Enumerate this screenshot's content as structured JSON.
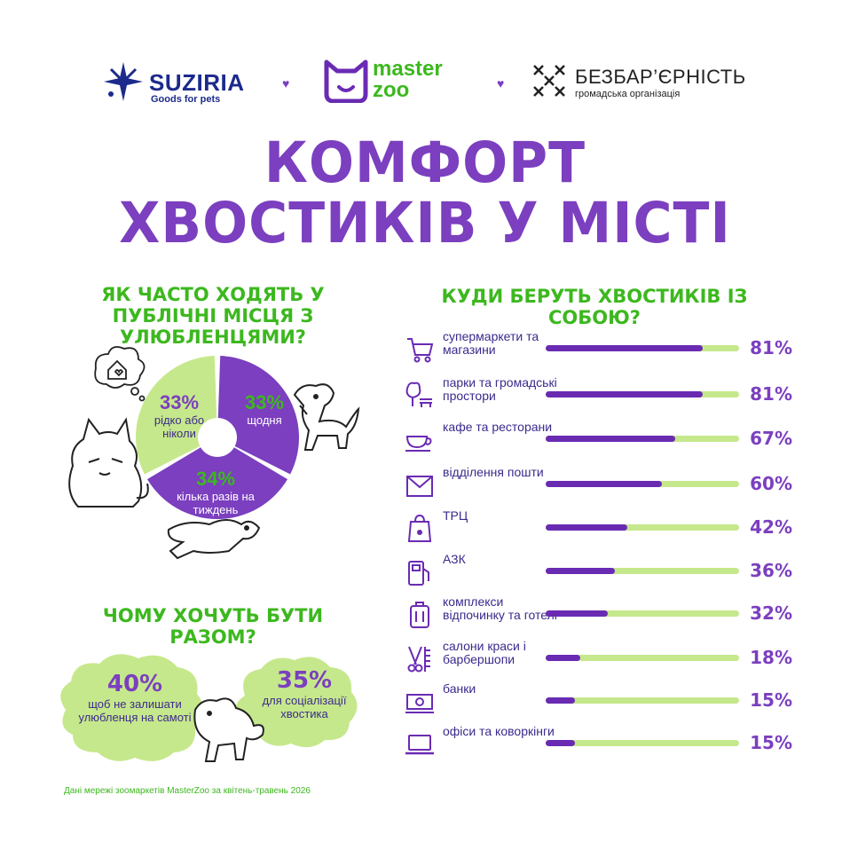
{
  "header": {
    "suziria": {
      "name": "SUZIRIA",
      "tagline": "Goods for pets"
    },
    "masterzoo": {
      "line1": "master",
      "line2": "zoo"
    },
    "bezbar": {
      "name": "БЕЗБАР’ЄРНІСТЬ",
      "tagline": "громадська організація"
    },
    "separator_icon": "heart-icon"
  },
  "title": {
    "line1": "КОМФОРТ",
    "line2": "ХВОСТИКІВ У МІСТІ"
  },
  "colors": {
    "purple": "#7b3fbf",
    "dark_purple": "#6a2bb3",
    "green": "#3cb81e",
    "light_green": "#c6e88c",
    "text": "#3b2a8c"
  },
  "chart_data": [
    {
      "type": "pie",
      "title": "ЯК ЧАСТО ХОДЯТЬ У ПУБЛІЧНІ МІСЦЯ З УЛЮБЛЕНЦЯМИ?",
      "slices": [
        {
          "label": "щодня",
          "value": 33,
          "value_label": "33%",
          "color": "#7b3fbf"
        },
        {
          "label": "кілька разів на тиждень",
          "value": 34,
          "value_label": "34%",
          "color": "#7b3fbf"
        },
        {
          "label": "рідко або ніколи",
          "value": 33,
          "value_label": "33%",
          "color": "#c6e88c"
        }
      ]
    },
    {
      "type": "bar",
      "orientation": "horizontal",
      "title": "КУДИ БЕРУТЬ ХВОСТИКІВ ІЗ СОБОЮ?",
      "xlim": [
        0,
        100
      ],
      "categories": [
        {
          "label": "супермаркети та магазини",
          "value": 81,
          "value_label": "81%",
          "icon": "shopping-cart-icon"
        },
        {
          "label": "парки та громадські простори",
          "value": 81,
          "value_label": "81%",
          "icon": "park-icon"
        },
        {
          "label": "кафе та ресторани",
          "value": 67,
          "value_label": "67%",
          "icon": "coffee-cup-icon"
        },
        {
          "label": "відділення пошти",
          "value": 60,
          "value_label": "60%",
          "icon": "mail-icon"
        },
        {
          "label": "ТРЦ",
          "value": 42,
          "value_label": "42%",
          "icon": "shopping-bag-icon"
        },
        {
          "label": "АЗК",
          "value": 36,
          "value_label": "36%",
          "icon": "fuel-pump-icon"
        },
        {
          "label": "комплекси відпочинку та готелі",
          "value": 32,
          "value_label": "32%",
          "icon": "suitcase-icon"
        },
        {
          "label": "салони краси і барбершопи",
          "value": 18,
          "value_label": "18%",
          "icon": "scissors-icon"
        },
        {
          "label": "банки",
          "value": 15,
          "value_label": "15%",
          "icon": "cash-icon"
        },
        {
          "label": "офіси та коворкінги",
          "value": 15,
          "value_label": "15%",
          "icon": "laptop-icon"
        }
      ]
    },
    {
      "type": "table",
      "title": "ЧОМУ ХОЧУТЬ БУТИ РАЗОМ?",
      "items": [
        {
          "value": 40,
          "value_label": "40%",
          "label": "щоб не залишати улюбленця на самоті"
        },
        {
          "value": 35,
          "value_label": "35%",
          "label": "для соціалізації хвостика"
        }
      ]
    }
  ],
  "footnote": "Дані мережі зоомаркетів MasterZoo за квітень-травень 2026"
}
